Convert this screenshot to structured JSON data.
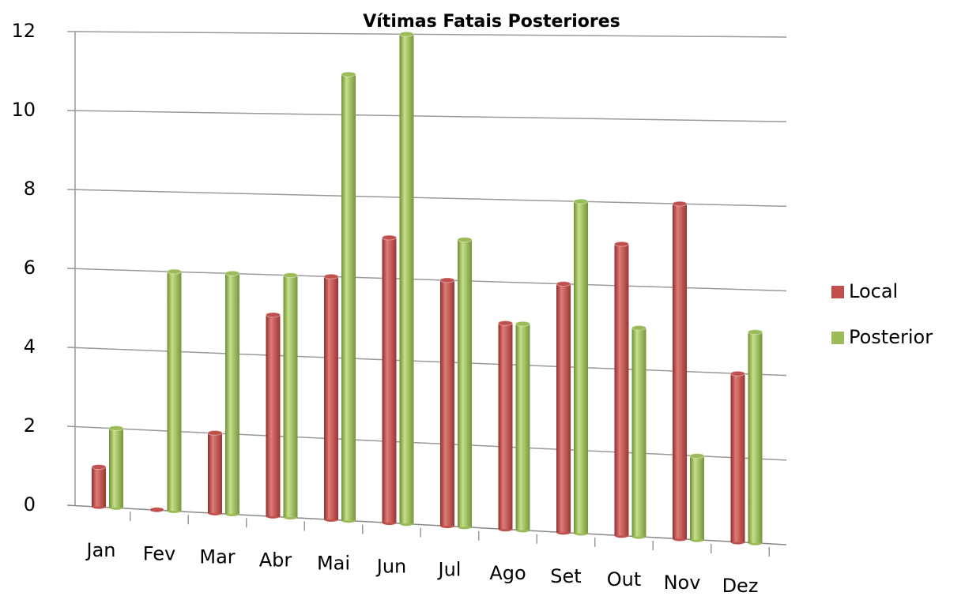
{
  "chart_data": {
    "type": "bar",
    "title": "Vítimas Fatais Posteriores",
    "categories": [
      "Jan",
      "Fev",
      "Mar",
      "Abr",
      "Mai",
      "Jun",
      "Jul",
      "Ago",
      "Set",
      "Out",
      "Nov",
      "Dez"
    ],
    "series": [
      {
        "name": "Local",
        "color": "#c0504d",
        "values": [
          1,
          0,
          2,
          5,
          6,
          7,
          6,
          5,
          6,
          7,
          8,
          4
        ]
      },
      {
        "name": "Posterior",
        "color": "#9bbb59",
        "values": [
          2,
          6,
          6,
          6,
          11,
          12,
          7,
          5,
          8,
          5,
          2,
          5
        ]
      }
    ],
    "ylim": [
      0,
      12
    ],
    "yticks": [
      0,
      2,
      4,
      6,
      8,
      10,
      12
    ],
    "grid": true,
    "legend": "right"
  }
}
